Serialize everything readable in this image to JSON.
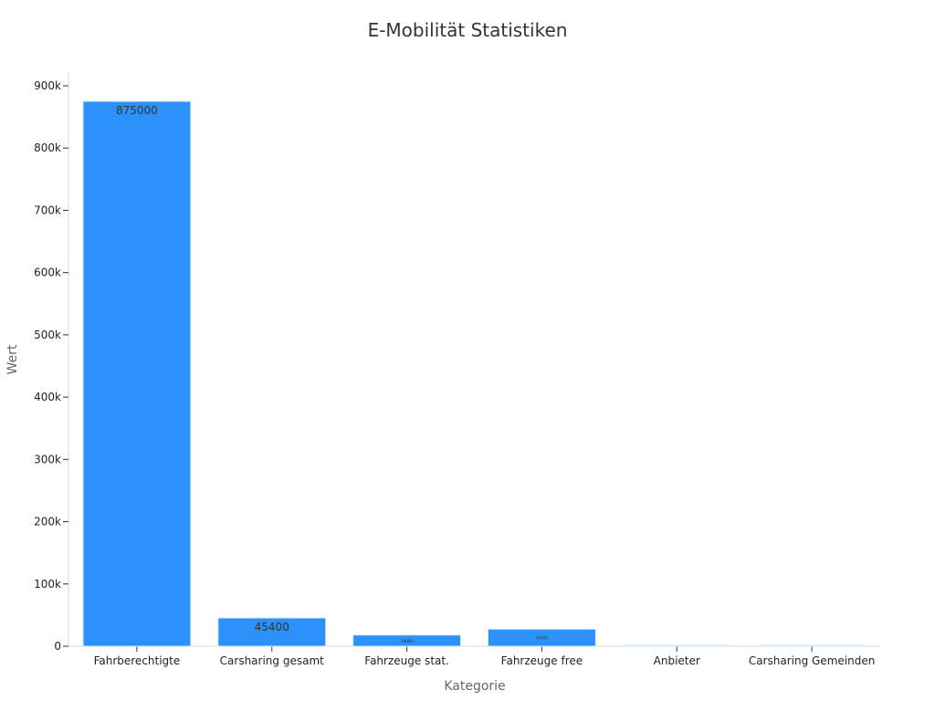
{
  "chart_data": {
    "type": "bar",
    "title": "E-Mobilität Statistiken",
    "xlabel": "Kategorie",
    "ylabel": "Wert",
    "categories": [
      "Fahrberechtigte",
      "Carsharing gesamt",
      "Fahrzeuge stat.",
      "Fahrzeuge free",
      "Anbieter",
      "Carsharing Gemeinden"
    ],
    "values": [
      875000,
      45400,
      18000,
      27400,
      0,
      900
    ],
    "value_labels": [
      "875000",
      "45400",
      "18000",
      "27400",
      "",
      ""
    ],
    "yticks": [
      0,
      100000,
      200000,
      300000,
      400000,
      500000,
      600000,
      700000,
      800000,
      900000
    ],
    "ytick_labels": [
      "0",
      "100k",
      "200k",
      "300k",
      "400k",
      "500k",
      "600k",
      "700k",
      "800k",
      "900k"
    ],
    "ylim": [
      0,
      920000
    ],
    "grid": false,
    "legend": "none",
    "colors": {
      "bar": "#2d91fb",
      "bar_light": "#8cc2f2",
      "axis": "#d5d9de",
      "text": "#222222",
      "title": "#333333",
      "axis_title": "#666666"
    }
  }
}
